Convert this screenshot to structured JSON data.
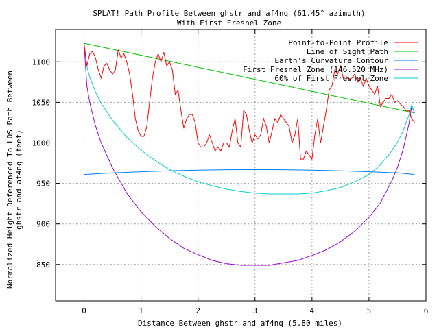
{
  "chart_data": {
    "type": "line",
    "title": "SPLAT! Path Profile Between ghstr and af4nq (61.45° azimuth)",
    "subtitle": "With First Fresnel Zone",
    "xlabel": "Distance Between ghstr and af4nq (5.80 miles)",
    "ylabel_line1": "Normalized Height Referenced To LOS Path Between",
    "ylabel_line2": "ghstr and af4nq (feet)",
    "xlim": [
      -0.5,
      6
    ],
    "ylim": [
      805,
      1140
    ],
    "xticks": [
      0,
      1,
      2,
      3,
      4,
      5,
      6
    ],
    "yticks": [
      850,
      900,
      950,
      1000,
      1050,
      1100
    ],
    "grid": true,
    "legend_position": "top-right",
    "series": [
      {
        "name": "Point-to-Point Profile",
        "color": "#ff0000",
        "x": [
          0.0,
          0.05,
          0.1,
          0.15,
          0.2,
          0.25,
          0.3,
          0.35,
          0.4,
          0.45,
          0.5,
          0.55,
          0.6,
          0.65,
          0.7,
          0.75,
          0.8,
          0.85,
          0.9,
          0.95,
          1.0,
          1.05,
          1.1,
          1.15,
          1.2,
          1.25,
          1.3,
          1.35,
          1.4,
          1.45,
          1.5,
          1.55,
          1.6,
          1.65,
          1.7,
          1.75,
          1.8,
          1.85,
          1.9,
          1.95,
          2.0,
          2.05,
          2.1,
          2.15,
          2.2,
          2.25,
          2.3,
          2.35,
          2.4,
          2.45,
          2.5,
          2.55,
          2.6,
          2.65,
          2.7,
          2.75,
          2.8,
          2.85,
          2.9,
          2.95,
          3.0,
          3.05,
          3.1,
          3.15,
          3.2,
          3.25,
          3.3,
          3.35,
          3.4,
          3.45,
          3.5,
          3.55,
          3.6,
          3.65,
          3.7,
          3.75,
          3.8,
          3.85,
          3.9,
          3.95,
          4.0,
          4.05,
          4.1,
          4.15,
          4.2,
          4.25,
          4.3,
          4.35,
          4.4,
          4.45,
          4.5,
          4.55,
          4.6,
          4.65,
          4.7,
          4.75,
          4.8,
          4.85,
          4.9,
          4.95,
          5.0,
          5.05,
          5.1,
          5.15,
          5.2,
          5.25,
          5.3,
          5.35,
          5.4,
          5.45,
          5.5,
          5.55,
          5.6,
          5.65,
          5.7,
          5.75,
          5.8
        ],
        "y": [
          1123,
          1095,
          1110,
          1113,
          1105,
          1090,
          1080,
          1095,
          1098,
          1090,
          1085,
          1090,
          1115,
          1105,
          1110,
          1100,
          1085,
          1060,
          1030,
          1015,
          1008,
          1008,
          1020,
          1050,
          1080,
          1100,
          1110,
          1100,
          1112,
          1095,
          1100,
          1090,
          1060,
          1065,
          1040,
          1018,
          1030,
          1035,
          1035,
          1025,
          1000,
          995,
          995,
          1000,
          1010,
          1000,
          990,
          995,
          990,
          1000,
          1000,
          995,
          1015,
          1030,
          1000,
          995,
          1040,
          1035,
          1015,
          1000,
          1010,
          1005,
          1010,
          1030,
          1020,
          1000,
          1015,
          1030,
          1025,
          1035,
          1030,
          1025,
          1020,
          1000,
          1010,
          1030,
          980,
          980,
          990,
          985,
          980,
          1010,
          1030,
          1000,
          1020,
          1040,
          1065,
          1070,
          1090,
          1085,
          1095,
          1080,
          1082,
          1078,
          1080,
          1085,
          1075,
          1080,
          1070,
          1080,
          1070,
          1065,
          1060,
          1070,
          1045,
          1050,
          1055,
          1055,
          1060,
          1050,
          1052,
          1048,
          1045,
          1040,
          1040,
          1030,
          1025
        ]
      },
      {
        "name": "Line of Sight Path",
        "color": "#00c000",
        "x": [
          0.0,
          5.8
        ],
        "y": [
          1123,
          1037
        ]
      },
      {
        "name": "Earth's Curvature Contour",
        "color": "#0080ff",
        "x": [
          0.0,
          0.5,
          1.0,
          1.5,
          2.0,
          2.5,
          3.0,
          3.5,
          4.0,
          4.5,
          5.0,
          5.5,
          5.8
        ],
        "y": [
          961,
          962.9,
          964.4,
          965.6,
          966.4,
          966.9,
          967.0,
          966.9,
          966.4,
          965.6,
          964.4,
          962.9,
          961
        ]
      },
      {
        "name": "First Fresnel Zone (146.520 MHz)",
        "color": "#a000d0",
        "x": [
          0.0,
          0.05,
          0.1,
          0.2,
          0.3,
          0.5,
          0.75,
          1.0,
          1.25,
          1.5,
          1.75,
          2.0,
          2.25,
          2.5,
          2.75,
          3.0,
          3.25,
          3.5,
          3.75,
          4.0,
          4.25,
          4.5,
          4.75,
          5.0,
          5.2,
          5.4,
          5.5,
          5.6,
          5.7,
          5.75,
          5.8
        ],
        "y": [
          1123,
          1070,
          1050,
          1021,
          1000,
          969,
          938,
          915,
          897,
          882,
          870,
          862,
          855,
          851,
          849,
          849,
          849,
          852,
          855,
          861,
          868,
          878,
          891,
          908,
          926,
          953,
          970,
          992,
          1023,
          1046,
          1037
        ]
      },
      {
        "name": "60% of First Fresnel Zone",
        "color": "#00d0d0",
        "x": [
          0.0,
          0.05,
          0.1,
          0.2,
          0.3,
          0.5,
          0.75,
          1.0,
          1.25,
          1.5,
          1.75,
          2.0,
          2.25,
          2.5,
          2.75,
          3.0,
          3.25,
          3.5,
          3.75,
          4.0,
          4.25,
          4.5,
          4.75,
          5.0,
          5.2,
          5.4,
          5.5,
          5.6,
          5.7,
          5.75,
          5.8
        ],
        "y": [
          1123,
          1094,
          1081,
          1063,
          1049,
          1028,
          1007,
          991,
          978,
          967,
          959,
          952,
          947,
          943,
          940,
          938,
          937,
          937,
          937,
          938,
          941,
          945,
          952,
          961,
          973,
          990,
          1001,
          1015,
          1034,
          1047,
          1037
        ]
      }
    ]
  }
}
